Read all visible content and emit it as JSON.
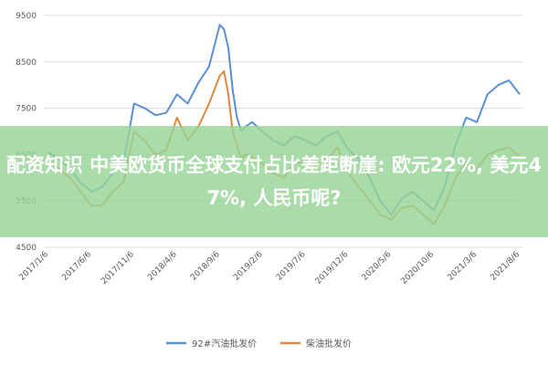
{
  "banner": {
    "text": "配资知识 中美欧货币全球支付占比差距断崖: 欧元22%, 美元47%, 人民币呢?"
  },
  "chart_data": {
    "type": "line",
    "title": "",
    "xlabel": "",
    "ylabel": "",
    "ylim": [
      4500,
      9500
    ],
    "yticks": [
      "9500",
      "8500",
      "7500",
      "6500",
      "5500",
      "4500"
    ],
    "xticks": [
      "2017/1/6",
      "2017/6/6",
      "2017/11/6",
      "2018/4/6",
      "2018/9/6",
      "2019/2/6",
      "2019/7/6",
      "2019/12/6",
      "2020/5/6",
      "2020/10/6",
      "2021/3/6",
      "2021/8/6"
    ],
    "grid": true,
    "legend_position": "bottom",
    "x_index_range": [
      0,
      11
    ],
    "series": [
      {
        "name": "92#汽油批发价",
        "color": "#5b8fd4",
        "x": [
          0,
          0.25,
          0.5,
          0.75,
          1,
          1.25,
          1.5,
          1.75,
          2,
          2.25,
          2.5,
          2.75,
          3,
          3.25,
          3.5,
          3.75,
          4,
          4.1,
          4.2,
          4.3,
          4.4,
          4.5,
          4.6,
          4.75,
          5,
          5.25,
          5.5,
          5.75,
          6,
          6.25,
          6.5,
          6.75,
          7,
          7.25,
          7.5,
          7.75,
          8,
          8.25,
          8.5,
          8.75,
          9,
          9.25,
          9.5,
          9.75,
          10,
          10.25,
          10.5,
          10.75,
          11
        ],
        "values": [
          6550,
          6400,
          6200,
          5900,
          5700,
          5800,
          6100,
          6300,
          7600,
          7500,
          7350,
          7400,
          7800,
          7600,
          8050,
          8400,
          9300,
          9200,
          8800,
          7900,
          7300,
          7000,
          7100,
          7200,
          7000,
          6800,
          6700,
          6900,
          6800,
          6700,
          6900,
          7000,
          6600,
          6400,
          6000,
          5500,
          5200,
          5550,
          5700,
          5500,
          5300,
          5800,
          6700,
          7300,
          7200,
          7800,
          8000,
          8100,
          7800
        ]
      },
      {
        "name": "柴油批发价",
        "color": "#e0883d",
        "x": [
          0,
          0.25,
          0.5,
          0.75,
          1,
          1.25,
          1.5,
          1.75,
          2,
          2.25,
          2.5,
          2.75,
          3,
          3.25,
          3.5,
          3.75,
          4,
          4.1,
          4.2,
          4.3,
          4.4,
          4.5,
          4.6,
          4.75,
          5,
          5.25,
          5.5,
          5.75,
          6,
          6.25,
          6.5,
          6.75,
          7,
          7.25,
          7.5,
          7.75,
          8,
          8.25,
          8.5,
          8.75,
          9,
          9.25,
          9.5,
          9.75,
          10,
          10.25,
          10.5,
          10.75,
          11
        ],
        "values": [
          6400,
          6200,
          6000,
          5700,
          5400,
          5400,
          5700,
          5900,
          7000,
          6800,
          6500,
          6600,
          7300,
          6800,
          7100,
          7600,
          8200,
          8300,
          7800,
          7000,
          6700,
          6400,
          6500,
          6450,
          6300,
          6100,
          6000,
          6350,
          6300,
          6250,
          6400,
          6650,
          6100,
          5800,
          5500,
          5200,
          5100,
          5350,
          5400,
          5200,
          5000,
          5400,
          6000,
          6300,
          6200,
          6500,
          6600,
          6650,
          6450
        ]
      }
    ]
  }
}
